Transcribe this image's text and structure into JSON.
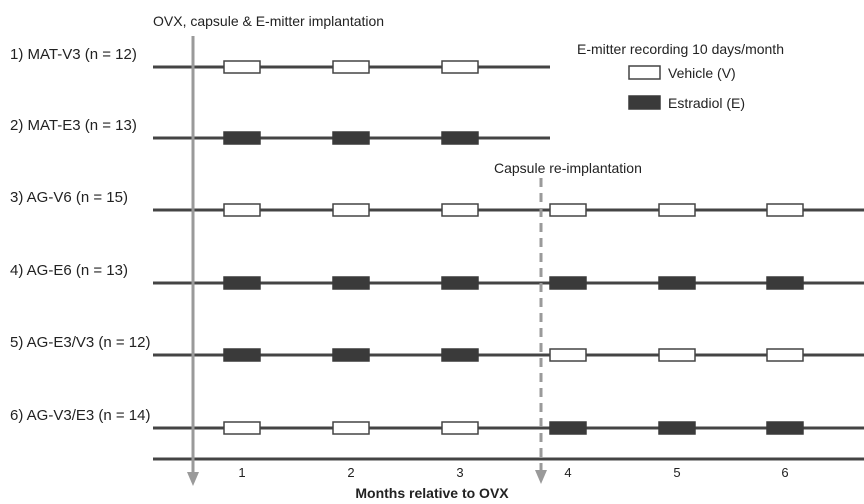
{
  "annotations": {
    "implantation": "OVX, capsule & E-mitter implantation",
    "reimplantation": "Capsule re-implantation"
  },
  "legend": {
    "title": "E-mitter recording 10 days/month",
    "vehicle": "Vehicle (V)",
    "estradiol": "Estradiol (E)"
  },
  "colors": {
    "line": "#444444",
    "estradiol_fill": "#3a3a3a",
    "vehicle_fill": "#ffffff",
    "arrow": "#9a9a9a"
  },
  "groups": [
    {
      "label": "1) MAT-V3 (n = 12)",
      "months": 3,
      "treatments": [
        "V",
        "V",
        "V"
      ]
    },
    {
      "label": "2) MAT-E3 (n = 13)",
      "months": 3,
      "treatments": [
        "E",
        "E",
        "E"
      ]
    },
    {
      "label": "3) AG-V6 (n = 15)",
      "months": 6,
      "treatments": [
        "V",
        "V",
        "V",
        "V",
        "V",
        "V"
      ]
    },
    {
      "label": "4) AG-E6 (n = 13)",
      "months": 6,
      "treatments": [
        "E",
        "E",
        "E",
        "E",
        "E",
        "E"
      ]
    },
    {
      "label": "5) AG-E3/V3 (n = 12)",
      "months": 6,
      "treatments": [
        "E",
        "E",
        "E",
        "V",
        "V",
        "V"
      ]
    },
    {
      "label": "6) AG-V3/E3 (n = 14)",
      "months": 6,
      "treatments": [
        "V",
        "V",
        "V",
        "E",
        "E",
        "E"
      ]
    }
  ],
  "axis": {
    "title": "Months relative to OVX",
    "ticks": [
      "1",
      "2",
      "3",
      "4",
      "5",
      "6"
    ]
  }
}
